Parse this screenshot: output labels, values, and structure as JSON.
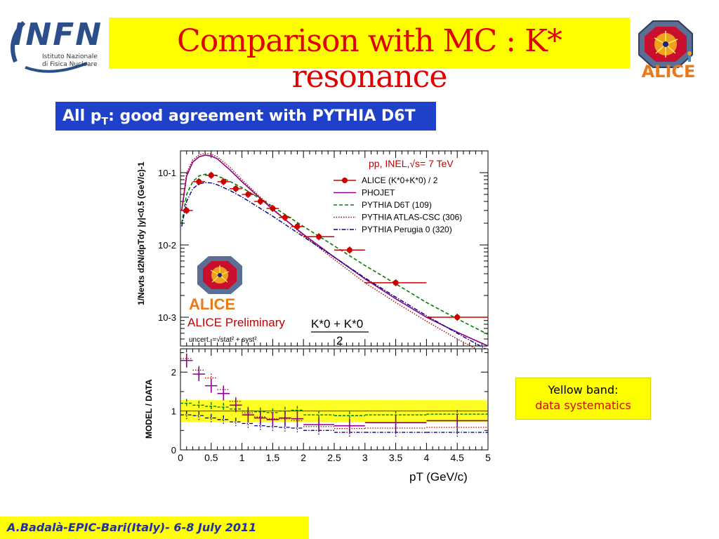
{
  "header": {
    "logo_left": {
      "wordmark": "INFN",
      "line1": "Istituto Nazionale",
      "line2": "di Fisica Nucleare",
      "icon": "infn-logo-icon"
    },
    "title": "Comparison with MC : K* resonance",
    "logo_right": {
      "wordmark": "ALICE",
      "icon": "alice-logo-icon"
    },
    "accent_yellow": "#ffff00",
    "title_color": "#e00000"
  },
  "subtitle": {
    "prefix": "All p",
    "sub": "T",
    "suffix": ": good agreement with PYTHIA D6T",
    "bg_color": "#1f40c8"
  },
  "side_note": {
    "line1": "Yellow band:",
    "line2": "data systematics"
  },
  "footer": {
    "text": "A.Badalà-EPIC-Bari(Italy)- 6-8 July 2011"
  },
  "chart_data": [
    {
      "type": "line",
      "panel": "top",
      "scale_y": "log",
      "xlim": [
        0,
        5
      ],
      "ylim": [
        0.0004,
        0.2
      ],
      "y_ticks": [
        "10-1",
        "10-2",
        "10-3"
      ],
      "ylabel": "1/Nevts d2N/dpTdy |y|<0.5 (GeV/c)-1",
      "annotations": {
        "system": "pp, INEL,√s= 7 TeV",
        "preliminary": "ALICE Preliminary",
        "uncert": "uncert. =√stat² + syst²",
        "formula_num": "K*0 + K*0",
        "formula_den": "2",
        "logo_wordmark": "ALICE"
      },
      "legend_position": "top-right",
      "legend": [
        "ALICE (K*0+K*0) / 2",
        "PHOJET",
        "PYTHIA D6T (109)",
        "PYTHIA ATLAS-CSC (306)",
        "PYTHIA Perugia 0 (320)"
      ],
      "colors": {
        "data": "#cc0000",
        "phojet": "#8b008b",
        "d6t": "#008000",
        "atlas": "#b00000",
        "perugia": "#00008b"
      },
      "data_points": {
        "x": [
          0.1,
          0.3,
          0.5,
          0.7,
          0.9,
          1.1,
          1.3,
          1.5,
          1.7,
          1.9,
          2.25,
          2.75,
          3.5,
          4.5
        ],
        "xerr": [
          0.1,
          0.1,
          0.1,
          0.1,
          0.1,
          0.1,
          0.1,
          0.1,
          0.1,
          0.1,
          0.25,
          0.25,
          0.5,
          0.5
        ],
        "y": [
          0.03,
          0.075,
          0.092,
          0.075,
          0.06,
          0.05,
          0.04,
          0.032,
          0.024,
          0.018,
          0.013,
          0.0085,
          0.003,
          0.001
        ]
      },
      "curves": {
        "x": [
          0.02,
          0.1,
          0.2,
          0.3,
          0.4,
          0.5,
          0.6,
          0.8,
          1.0,
          1.25,
          1.5,
          2.0,
          2.5,
          3.0,
          3.5,
          4.0,
          4.5,
          5.0
        ],
        "phojet": [
          0.03,
          0.09,
          0.14,
          0.165,
          0.175,
          0.17,
          0.155,
          0.11,
          0.075,
          0.048,
          0.031,
          0.014,
          0.0068,
          0.0034,
          0.0018,
          0.001,
          0.00062,
          0.0004
        ],
        "d6t": [
          0.02,
          0.05,
          0.075,
          0.09,
          0.095,
          0.095,
          0.09,
          0.076,
          0.062,
          0.046,
          0.034,
          0.018,
          0.0097,
          0.0052,
          0.0029,
          0.0016,
          0.00095,
          0.00058
        ],
        "atlas": [
          0.03,
          0.1,
          0.15,
          0.175,
          0.185,
          0.18,
          0.165,
          0.12,
          0.08,
          0.05,
          0.032,
          0.0135,
          0.0063,
          0.003,
          0.0016,
          0.00088,
          0.0005,
          0.0003
        ],
        "perugia": [
          0.018,
          0.04,
          0.06,
          0.07,
          0.073,
          0.072,
          0.068,
          0.057,
          0.046,
          0.034,
          0.025,
          0.013,
          0.0068,
          0.0035,
          0.0019,
          0.00105,
          0.0006,
          0.00035
        ]
      }
    },
    {
      "type": "line",
      "panel": "bottom",
      "xlim": [
        0,
        5
      ],
      "ylim": [
        0,
        2.6
      ],
      "x_ticks": [
        "0",
        "0.5",
        "1",
        "1.5",
        "2",
        "2.5",
        "3",
        "3.5",
        "4",
        "4.5",
        "5"
      ],
      "y_ticks": [
        "0",
        "1",
        "2"
      ],
      "xlabel": "pT (GeV/c)",
      "ylabel": "MODEL / DATA",
      "band": [
        0.72,
        1.28
      ],
      "x": [
        0.1,
        0.3,
        0.5,
        0.7,
        0.9,
        1.1,
        1.3,
        1.5,
        1.7,
        1.9,
        2.25,
        2.75,
        3.5,
        4.5
      ],
      "xerr": [
        0.1,
        0.1,
        0.1,
        0.1,
        0.1,
        0.1,
        0.1,
        0.1,
        0.1,
        0.1,
        0.25,
        0.25,
        0.5,
        0.5
      ],
      "phojet": [
        2.3,
        1.95,
        1.65,
        1.45,
        1.15,
        0.9,
        0.82,
        0.78,
        0.82,
        0.8,
        0.65,
        0.62,
        0.7,
        0.75
      ],
      "d6t": [
        1.2,
        1.15,
        1.12,
        1.1,
        1.05,
        1.0,
        0.98,
        0.96,
        1.0,
        1.02,
        0.9,
        0.88,
        0.9,
        0.92
      ],
      "atlas": [
        2.35,
        2.05,
        1.85,
        1.55,
        1.25,
        0.95,
        0.85,
        0.8,
        0.8,
        0.75,
        0.6,
        0.55,
        0.56,
        0.58
      ],
      "perugia": [
        0.9,
        0.88,
        0.82,
        0.78,
        0.72,
        0.68,
        0.62,
        0.6,
        0.58,
        0.56,
        0.5,
        0.45,
        0.45,
        0.45
      ]
    }
  ]
}
